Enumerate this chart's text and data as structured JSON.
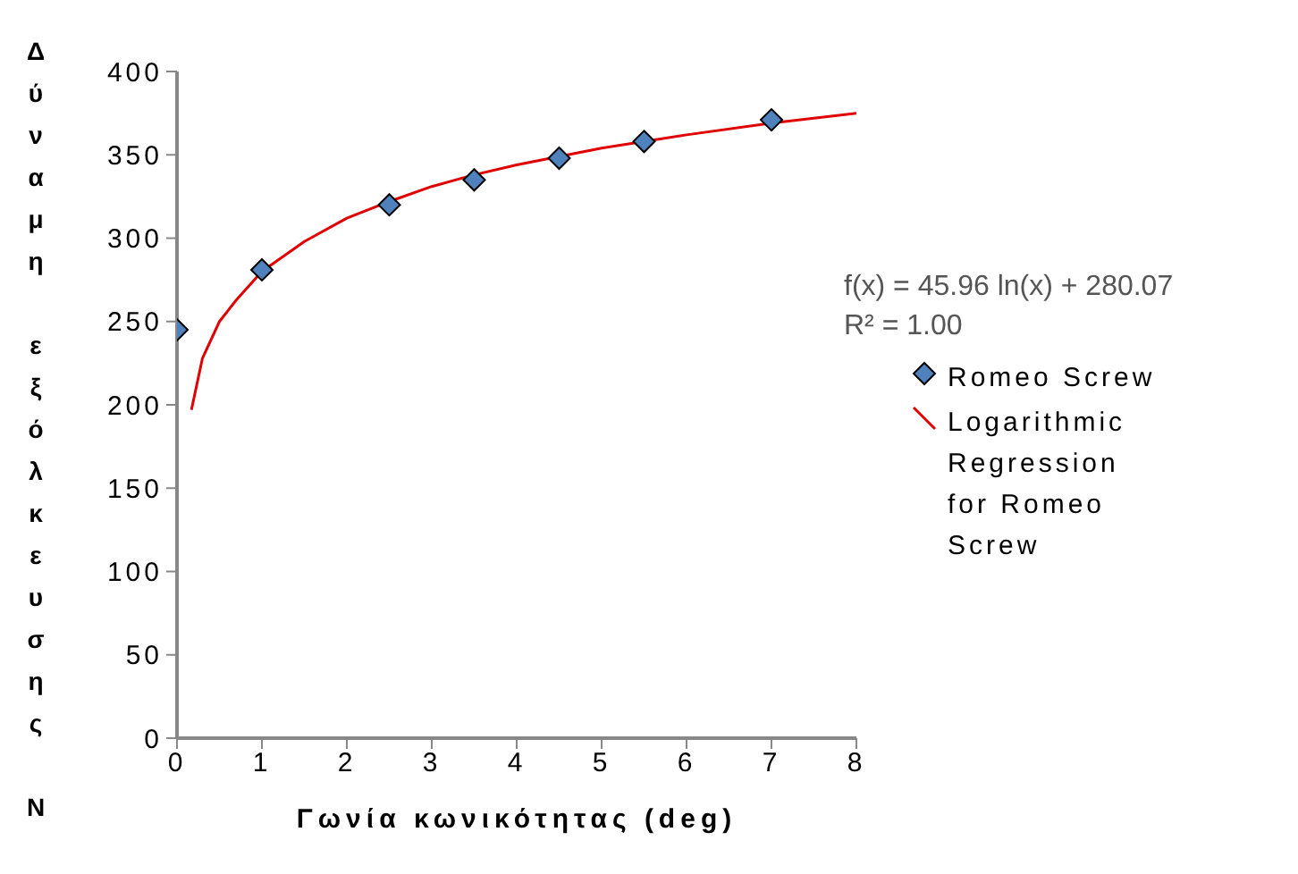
{
  "chart_data": {
    "type": "scatter",
    "xlabel": "Γωνία κωνικότητας (deg)",
    "ylabel": "Δύναμη εξόλκευσης N",
    "xlim": [
      0,
      8
    ],
    "xticks": [
      0,
      1,
      2,
      3,
      4,
      5,
      6,
      7,
      8
    ],
    "ylim": [
      0,
      400
    ],
    "yticks": [
      0,
      50,
      100,
      150,
      200,
      250,
      300,
      350,
      400
    ],
    "grid": false,
    "legend": "right",
    "annotations": [
      "f(x) = 45.96 ln(x) + 280.07",
      "R² = 1.00"
    ],
    "series": [
      {
        "name": "Romeo Screw",
        "type": "scatter",
        "marker": "diamond",
        "color": "#4f81bd",
        "x": [
          0,
          1,
          2.5,
          3.5,
          4.5,
          5.5,
          7
        ],
        "values": [
          245,
          281,
          320,
          335,
          348,
          358,
          371
        ]
      },
      {
        "name": "Logarithmic Regression for Romeo Screw",
        "type": "line",
        "marker": "none",
        "color": "#e00000",
        "x": [
          0.17,
          0.3,
          0.5,
          0.7,
          1,
          1.5,
          2,
          2.5,
          3,
          3.5,
          4,
          5,
          6,
          7,
          8
        ],
        "values": [
          197,
          228,
          250,
          263,
          280,
          298,
          312,
          322,
          331,
          338,
          344,
          354,
          362,
          369,
          375
        ]
      }
    ]
  }
}
